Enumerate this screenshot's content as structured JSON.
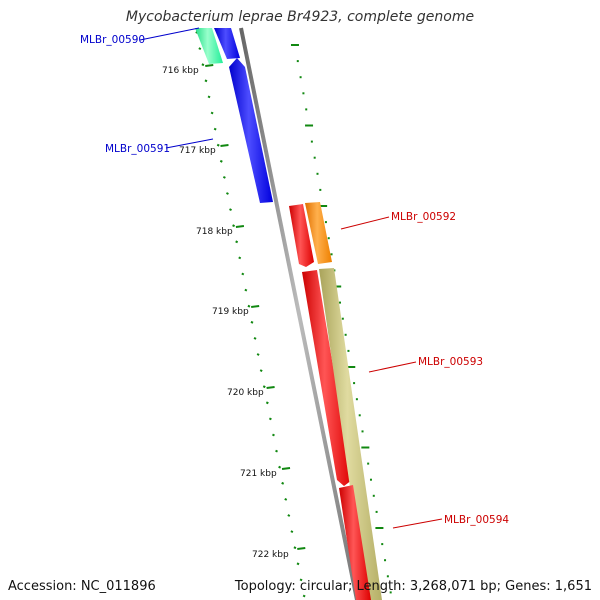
{
  "title": "Mycobacterium leprae Br4923, complete genome",
  "accession_text": "Accession: NC_011896",
  "summary_text": "Topology: circular; Length: 3,268,071 bp; Genes: 1,651",
  "colors": {
    "forward_gene": "#0000ff",
    "forward_gene_prev": "#33ff99",
    "reverse_gene": "#ff0000",
    "reverse_gene_alt": "#ff8c00",
    "reverse_feature": "#bdb76b",
    "backbone": "#888888",
    "ticks": "#118811",
    "forward_label": "#0000cc",
    "reverse_label": "#cc0000"
  },
  "scale": {
    "ticks": [
      {
        "label": "716 kbp"
      },
      {
        "label": "717 kbp"
      },
      {
        "label": "718 kbp"
      },
      {
        "label": "719 kbp"
      },
      {
        "label": "720 kbp"
      },
      {
        "label": "721 kbp"
      },
      {
        "label": "722 kbp"
      }
    ]
  },
  "genes": [
    {
      "name": "MLBr_00590",
      "strand": "forward"
    },
    {
      "name": "MLBr_00591",
      "strand": "forward"
    },
    {
      "name": "MLBr_00592",
      "strand": "reverse"
    },
    {
      "name": "MLBr_00593",
      "strand": "reverse"
    },
    {
      "name": "MLBr_00594",
      "strand": "reverse"
    }
  ]
}
